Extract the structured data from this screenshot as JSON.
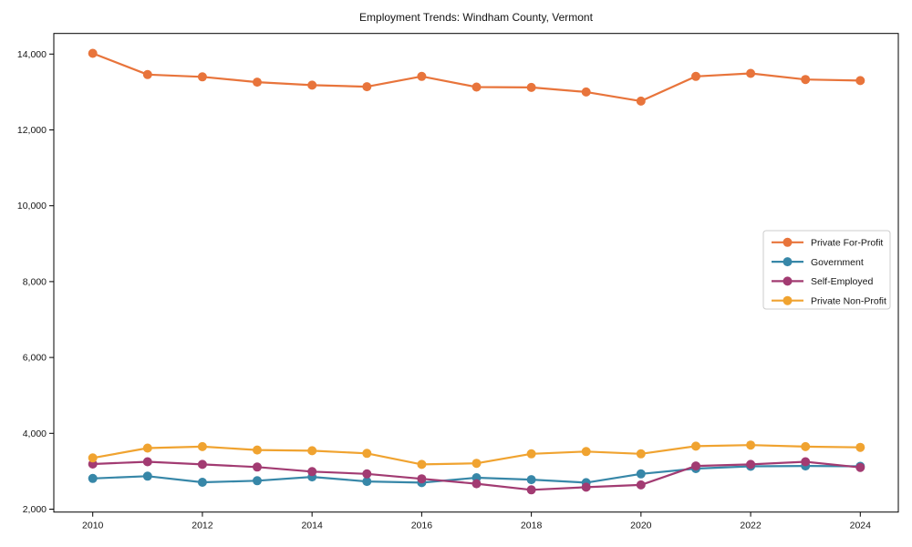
{
  "chart_data": {
    "type": "line",
    "title": "Employment Trends: Windham County, Vermont",
    "xlabel": "",
    "ylabel": "",
    "x": [
      2010,
      2011,
      2012,
      2013,
      2014,
      2015,
      2016,
      2017,
      2018,
      2019,
      2020,
      2021,
      2022,
      2023,
      2024
    ],
    "xticks": [
      2010,
      2012,
      2014,
      2016,
      2018,
      2020,
      2022,
      2024
    ],
    "yticks": [
      2000,
      4000,
      6000,
      8000,
      10000,
      12000,
      14000
    ],
    "ytick_labels": [
      "2,000",
      "4,000",
      "6,000",
      "8,000",
      "10,000",
      "12,000",
      "14,000"
    ],
    "xlim": [
      2009.3,
      2024.7
    ],
    "ylim": [
      1930,
      14560
    ],
    "grid": false,
    "legend_position": "center right",
    "series": [
      {
        "name": "Private For-Profit",
        "color": "#e8743b",
        "values": [
          14020,
          13460,
          13400,
          13260,
          13180,
          13140,
          13410,
          13130,
          13120,
          13000,
          12760,
          13410,
          13490,
          13330,
          13300
        ]
      },
      {
        "name": "Government",
        "color": "#3787a8",
        "values": [
          2810,
          2870,
          2710,
          2750,
          2850,
          2730,
          2700,
          2830,
          2780,
          2700,
          2930,
          3070,
          3130,
          3140,
          3130
        ]
      },
      {
        "name": "Self-Employed",
        "color": "#a23b72",
        "values": [
          3190,
          3250,
          3180,
          3110,
          2990,
          2930,
          2800,
          2670,
          2510,
          2580,
          2640,
          3140,
          3180,
          3250,
          3100
        ]
      },
      {
        "name": "Private Non-Profit",
        "color": "#f0a330",
        "values": [
          3350,
          3610,
          3650,
          3560,
          3540,
          3470,
          3180,
          3210,
          3460,
          3520,
          3460,
          3660,
          3690,
          3650,
          3630
        ]
      }
    ]
  }
}
